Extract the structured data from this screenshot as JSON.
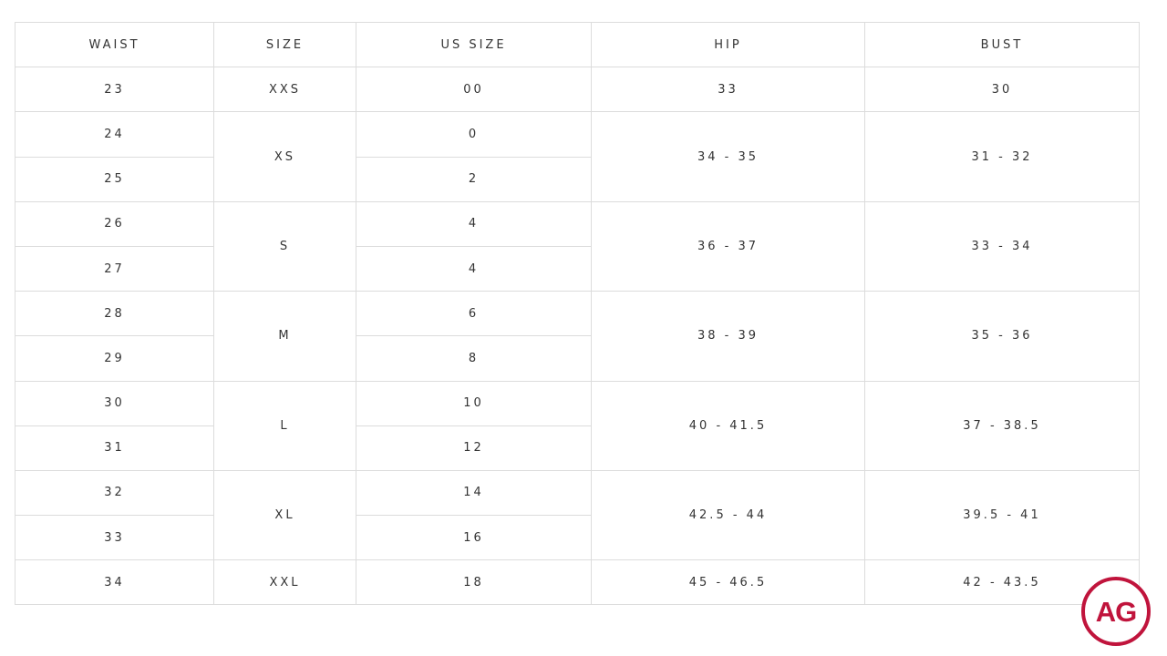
{
  "headers": [
    "WAIST",
    "SIZE",
    "US SIZE",
    "HIP",
    "BUST"
  ],
  "groups": [
    {
      "size": "XXS",
      "hip": "33",
      "bust": "30",
      "rows": [
        {
          "waist": "23",
          "us_size": "00"
        }
      ]
    },
    {
      "size": "XS",
      "hip": "34 - 35",
      "bust": "31 - 32",
      "rows": [
        {
          "waist": "24",
          "us_size": "0"
        },
        {
          "waist": "25",
          "us_size": "2"
        }
      ]
    },
    {
      "size": "S",
      "hip": "36 - 37",
      "bust": "33 - 34",
      "rows": [
        {
          "waist": "26",
          "us_size": "4"
        },
        {
          "waist": "27",
          "us_size": "4"
        }
      ]
    },
    {
      "size": "M",
      "hip": "38 - 39",
      "bust": "35 - 36",
      "rows": [
        {
          "waist": "28",
          "us_size": "6"
        },
        {
          "waist": "29",
          "us_size": "8"
        }
      ]
    },
    {
      "size": "L",
      "hip": "40 - 41.5",
      "bust": "37 - 38.5",
      "rows": [
        {
          "waist": "30",
          "us_size": "10"
        },
        {
          "waist": "31",
          "us_size": "12"
        }
      ]
    },
    {
      "size": "XL",
      "hip": "42.5 - 44",
      "bust": "39.5 - 41",
      "rows": [
        {
          "waist": "32",
          "us_size": "14"
        },
        {
          "waist": "33",
          "us_size": "16"
        }
      ]
    },
    {
      "size": "XXL",
      "hip": "45 - 46.5",
      "bust": "42 - 43.5",
      "rows": [
        {
          "waist": "34",
          "us_size": "18"
        }
      ]
    }
  ],
  "logo": {
    "text": "AG",
    "color": "#c0143c"
  }
}
